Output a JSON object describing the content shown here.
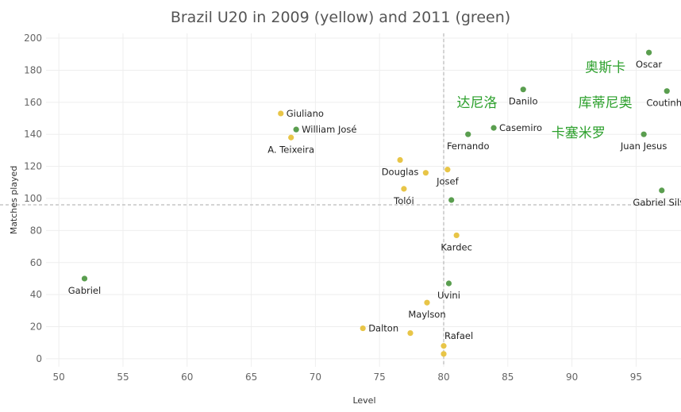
{
  "chart_data": {
    "type": "scatter",
    "title": "Brazil U20 in 2009 (yellow) and 2011 (green)",
    "xlabel": "Level",
    "ylabel": "Matches played",
    "xlim": [
      49,
      98.5
    ],
    "ylim": [
      -5,
      203
    ],
    "xticks": [
      50,
      55,
      60,
      65,
      70,
      75,
      80,
      85,
      90,
      95
    ],
    "yticks": [
      0,
      20,
      40,
      60,
      80,
      100,
      120,
      140,
      160,
      180,
      200
    ],
    "reference_lines": {
      "x": 80,
      "y": 96
    },
    "grid": true,
    "series": [
      {
        "name": "2009",
        "color": "#e8c547",
        "points": [
          {
            "name": "Giuliano",
            "x": 67.3,
            "y": 153,
            "label_pos": "right"
          },
          {
            "name": "A. Teixeira",
            "x": 68.1,
            "y": 138,
            "label_pos": "below"
          },
          {
            "name": "Douglas",
            "x": 76.6,
            "y": 124,
            "label_pos": "below"
          },
          {
            "name": "Josef",
            "x": 80.3,
            "y": 118,
            "label_pos": "below"
          },
          {
            "name": "",
            "x": 78.6,
            "y": 116,
            "label_pos": "none"
          },
          {
            "name": "Tolói",
            "x": 76.9,
            "y": 106,
            "label_pos": "below"
          },
          {
            "name": "Kardec",
            "x": 81.0,
            "y": 77,
            "label_pos": "below"
          },
          {
            "name": "Maylson",
            "x": 78.7,
            "y": 35,
            "label_pos": "below"
          },
          {
            "name": "Dalton",
            "x": 73.7,
            "y": 19,
            "label_pos": "right"
          },
          {
            "name": "",
            "x": 77.4,
            "y": 16,
            "label_pos": "none"
          },
          {
            "name": "Rafael",
            "x": 80.0,
            "y": 8,
            "label_pos": "above-right"
          },
          {
            "name": "",
            "x": 80.0,
            "y": 3,
            "label_pos": "none"
          }
        ]
      },
      {
        "name": "2011",
        "color": "#5a9e4f",
        "points": [
          {
            "name": "Oscar",
            "x": 96.0,
            "y": 191,
            "label_pos": "below"
          },
          {
            "name": "Coutinho",
            "x": 97.4,
            "y": 167,
            "label_pos": "below"
          },
          {
            "name": "Danilo",
            "x": 86.2,
            "y": 168,
            "label_pos": "below"
          },
          {
            "name": "William José",
            "x": 68.5,
            "y": 143,
            "label_pos": "right"
          },
          {
            "name": "Casemiro",
            "x": 83.9,
            "y": 144,
            "label_pos": "right"
          },
          {
            "name": "Fernando",
            "x": 81.9,
            "y": 140,
            "label_pos": "below"
          },
          {
            "name": "Juan Jesus",
            "x": 95.6,
            "y": 140,
            "label_pos": "below"
          },
          {
            "name": "Gabriel Silva",
            "x": 97.0,
            "y": 105,
            "label_pos": "below"
          },
          {
            "name": "",
            "x": 80.6,
            "y": 99,
            "label_pos": "none"
          },
          {
            "name": "Gabriel",
            "x": 52.0,
            "y": 50,
            "label_pos": "below"
          },
          {
            "name": "Uvini",
            "x": 80.4,
            "y": 47,
            "label_pos": "below"
          }
        ]
      }
    ],
    "annotations": [
      {
        "text": "奥斯卡",
        "x": 92.6,
        "y": 182,
        "color": "#2ca02c"
      },
      {
        "text": "达尼洛",
        "x": 82.6,
        "y": 160,
        "color": "#2ca02c"
      },
      {
        "text": "库蒂尼奥",
        "x": 92.6,
        "y": 160,
        "color": "#2ca02c"
      },
      {
        "text": "卡塞米罗",
        "x": 90.5,
        "y": 141,
        "color": "#2ca02c"
      }
    ]
  }
}
